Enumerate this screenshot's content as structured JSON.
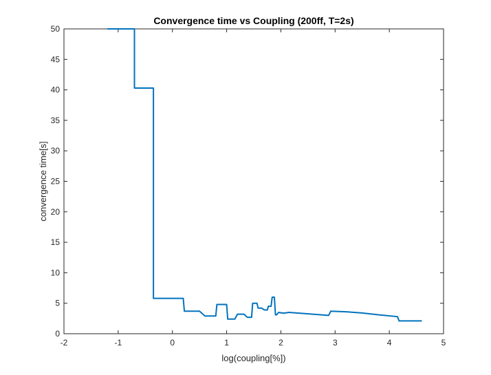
{
  "chart_data": {
    "type": "line",
    "title": "Convergence time vs Coupling (200ff, T=2s)",
    "xlabel": "log(coupling[%])",
    "ylabel": "convergence time[s]",
    "xlim": [
      -2,
      5
    ],
    "ylim": [
      0,
      50
    ],
    "xticks": [
      -2,
      -1,
      0,
      1,
      2,
      3,
      4,
      5
    ],
    "yticks": [
      0,
      5,
      10,
      15,
      20,
      25,
      30,
      35,
      40,
      45,
      50
    ],
    "grid": false,
    "box": true,
    "series": [
      {
        "color": "#0072BD",
        "x": [
          -1.2,
          -0.7,
          -0.7,
          -0.35,
          -0.35,
          -0.2,
          -0.2,
          0.2,
          0.22,
          0.5,
          0.6,
          0.8,
          0.82,
          1.0,
          1.02,
          1.15,
          1.2,
          1.32,
          1.38,
          1.46,
          1.48,
          1.56,
          1.58,
          1.64,
          1.7,
          1.75,
          1.77,
          1.82,
          1.84,
          1.88,
          1.9,
          1.92,
          1.96,
          2.02,
          2.08,
          2.15,
          2.88,
          2.92,
          3.2,
          3.5,
          3.8,
          4.15,
          4.18,
          4.6
        ],
        "y": [
          50,
          50,
          40.3,
          40.3,
          5.8,
          5.8,
          5.8,
          5.8,
          3.7,
          3.7,
          2.9,
          2.9,
          4.8,
          4.8,
          2.4,
          2.4,
          3.2,
          3.2,
          2.7,
          2.7,
          5.0,
          5.0,
          4.2,
          4.2,
          3.9,
          3.9,
          4.5,
          4.5,
          6.0,
          6.0,
          3.1,
          3.1,
          3.5,
          3.4,
          3.4,
          3.5,
          3.0,
          3.7,
          3.6,
          3.4,
          3.1,
          2.8,
          2.1,
          2.1
        ]
      }
    ]
  }
}
